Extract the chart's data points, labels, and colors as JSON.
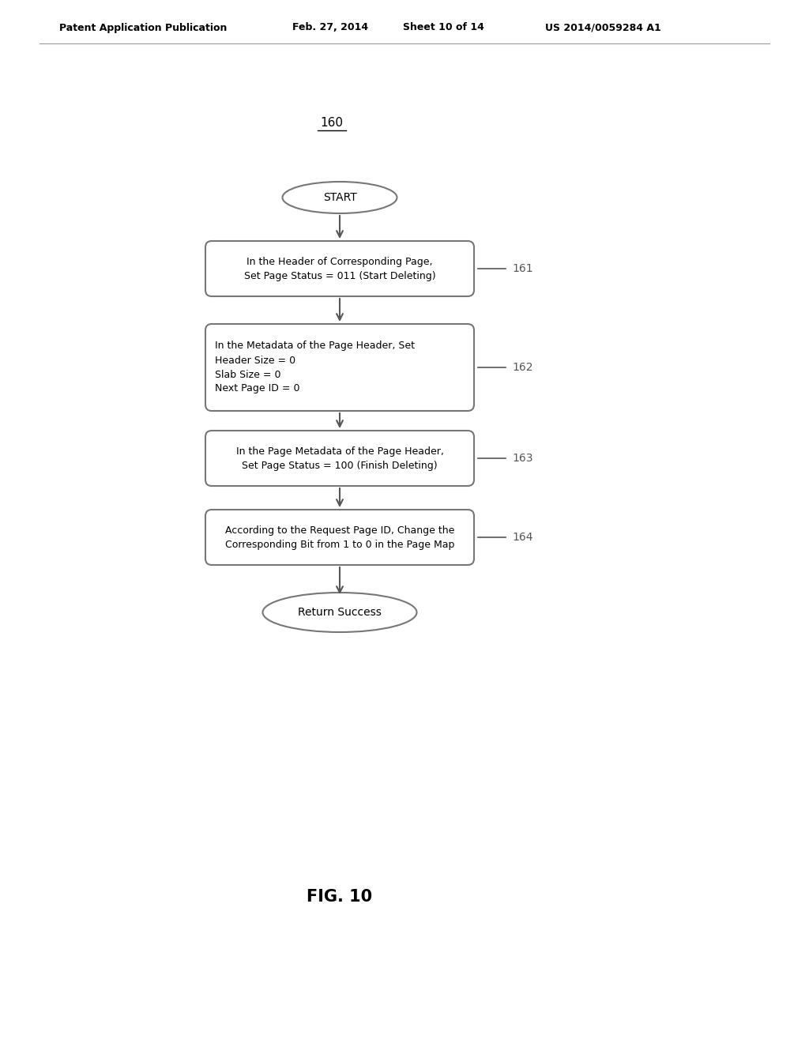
{
  "bg_color": "#ffffff",
  "text_color": "#000000",
  "header_line1": "Patent Application Publication",
  "header_date": "Feb. 27, 2014",
  "header_sheet": "Sheet 10 of 14",
  "header_patent": "US 2014/0059284 A1",
  "diagram_label": "160",
  "fig_label": "FIG. 10",
  "start_label": "START",
  "end_label": "Return Success",
  "boxes": [
    {
      "id": 161,
      "label": "161",
      "text": "In the Header of Corresponding Page,\nSet Page Status = 011 (Start Deleting)"
    },
    {
      "id": 162,
      "label": "162",
      "text": "In the Metadata of the Page Header, Set\nHeader Size = 0\nSlab Size = 0\nNext Page ID = 0"
    },
    {
      "id": 163,
      "label": "163",
      "text": "In the Page Metadata of the Page Header,\nSet Page Status = 100 (Finish Deleting)"
    },
    {
      "id": 164,
      "label": "164",
      "text": "According to the Request Page ID, Change the\nCorresponding Bit from 1 to 0 in the Page Map"
    }
  ],
  "box_color": "#ffffff",
  "box_edge_color": "#777777",
  "arrow_color": "#555555",
  "label_color": "#555555",
  "font_size_header": 9,
  "font_size_box": 9,
  "font_size_label": 10,
  "font_size_diagram": 11,
  "font_size_fig": 15
}
